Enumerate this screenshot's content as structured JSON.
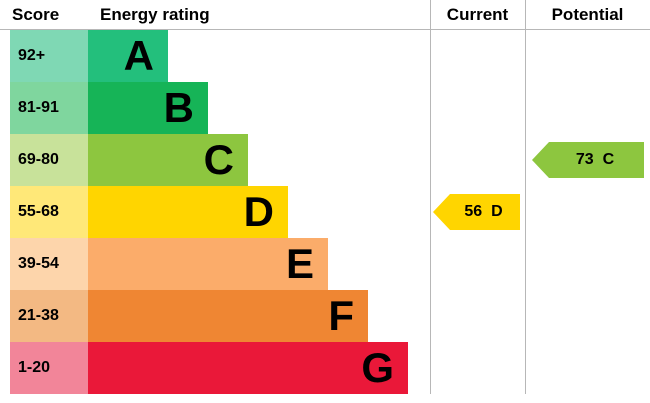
{
  "chart_data": {
    "type": "bar",
    "title": "Energy rating",
    "orientation": "horizontal",
    "categories": [
      "A",
      "B",
      "C",
      "D",
      "E",
      "F",
      "G"
    ],
    "score_ranges": [
      "92+",
      "81-91",
      "69-80",
      "55-68",
      "39-54",
      "21-38",
      "1-20"
    ],
    "bar_lengths_relative": [
      1,
      1.5,
      2,
      2.5,
      3,
      3.5,
      4
    ],
    "band_colors": [
      "#23bf7c",
      "#16b457",
      "#8dc63f",
      "#ffd500",
      "#fbac6a",
      "#ef8633",
      "#ea1839"
    ],
    "current": {
      "score": 56,
      "rating": "D"
    },
    "potential": {
      "score": 73,
      "rating": "C"
    },
    "legend_position": "none",
    "grid": false
  },
  "header": {
    "score": "Score",
    "energy_rating": "Energy rating",
    "current": "Current",
    "potential": "Potential"
  },
  "bands": [
    {
      "range": "92+",
      "letter": "A",
      "bar_color": "#23bf7c",
      "score_bg": "#7fd8b4"
    },
    {
      "range": "81-91",
      "letter": "B",
      "bar_color": "#16b457",
      "score_bg": "#7fd69e"
    },
    {
      "range": "69-80",
      "letter": "C",
      "bar_color": "#8dc63f",
      "score_bg": "#c8e29a"
    },
    {
      "range": "55-68",
      "letter": "D",
      "bar_color": "#ffd500",
      "score_bg": "#ffe878"
    },
    {
      "range": "39-54",
      "letter": "E",
      "bar_color": "#fbac6a",
      "score_bg": "#fdd5ab"
    },
    {
      "range": "21-38",
      "letter": "F",
      "bar_color": "#ef8633",
      "score_bg": "#f3b983"
    },
    {
      "range": "1-20",
      "letter": "G",
      "bar_color": "#ea1839",
      "score_bg": "#f28599"
    }
  ],
  "current": {
    "value": "56",
    "letter": "D",
    "color": "#ffd500"
  },
  "potential": {
    "value": "73",
    "letter": "C",
    "color": "#8dc63f"
  }
}
